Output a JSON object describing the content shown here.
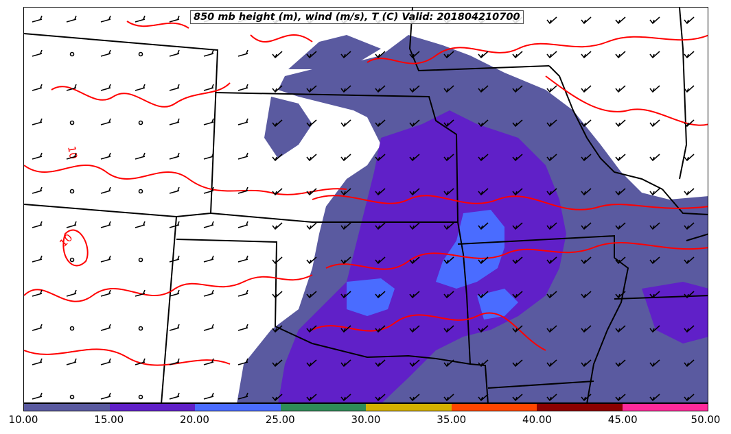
{
  "title": "850 mb height (m), wind (m/s), T (C) Valid: 201804210700",
  "colorbar": {
    "ticks": [
      "10.00",
      "15.00",
      "20.00",
      "25.00",
      "30.00",
      "35.00",
      "40.00",
      "45.00",
      "50.00"
    ],
    "colors": [
      "#5a5aa0",
      "#6020c8",
      "#4a6cff",
      "#2e8b57",
      "#d4b000",
      "#ff4500",
      "#8b0000",
      "#ff2a9a"
    ]
  },
  "contour_labels": [
    "10",
    "10"
  ],
  "colors": {
    "shade_10_15": "#5a5aa0",
    "shade_15_20": "#6020c8",
    "shade_20_25": "#4a6cff",
    "temperature_contour": "#ff0000",
    "boundaries": "#000000"
  }
}
